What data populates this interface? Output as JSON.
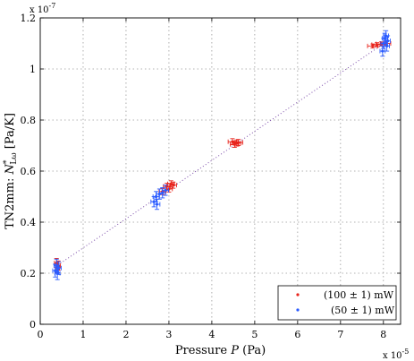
{
  "chart_data": {
    "type": "scatter",
    "xlabel_text": "Pressure",
    "xlabel_var": "P",
    "xlabel_unit": "(Pa)",
    "ylabel_prefix": "TN2mm: ",
    "ylabel_var": "N",
    "ylabel_sup": "*",
    "ylabel_sub": "Lω",
    "ylabel_unit": "[Pa/K]",
    "x_multiplier": "x 10",
    "x_multiplier_exp": "-5",
    "y_multiplier": "x 10",
    "y_multiplier_exp": "-7",
    "xlim": [
      0,
      8.4
    ],
    "ylim": [
      0,
      1.2
    ],
    "xticks": [
      0,
      1,
      2,
      3,
      4,
      5,
      6,
      7,
      8
    ],
    "yticks": [
      0,
      0.2,
      0.4,
      0.6,
      0.8,
      1,
      1.2
    ],
    "xtick_labels": [
      "0",
      "1",
      "2",
      "3",
      "4",
      "5",
      "6",
      "7",
      "8"
    ],
    "ytick_labels": [
      "0",
      "0.2",
      "0.4",
      "0.6",
      "0.8",
      "1",
      "1.2"
    ],
    "grid": true,
    "legend_position": "bottom-right",
    "fit_line": {
      "x": [
        0.35,
        8.1
      ],
      "y": [
        0.225,
        1.11
      ]
    },
    "series": [
      {
        "name": "(100 ± 1) mW",
        "color": "#e8241c",
        "points": [
          {
            "x": 0.38,
            "y": 0.24,
            "ex": 0.05,
            "ey": 0.018
          },
          {
            "x": 0.4,
            "y": 0.22,
            "ex": 0.05,
            "ey": 0.018
          },
          {
            "x": 0.42,
            "y": 0.23,
            "ex": 0.05,
            "ey": 0.018
          },
          {
            "x": 2.85,
            "y": 0.52,
            "ex": 0.08,
            "ey": 0.012
          },
          {
            "x": 2.95,
            "y": 0.54,
            "ex": 0.08,
            "ey": 0.012
          },
          {
            "x": 3.0,
            "y": 0.53,
            "ex": 0.08,
            "ey": 0.012
          },
          {
            "x": 3.05,
            "y": 0.55,
            "ex": 0.08,
            "ey": 0.012
          },
          {
            "x": 3.1,
            "y": 0.545,
            "ex": 0.08,
            "ey": 0.012
          },
          {
            "x": 4.48,
            "y": 0.715,
            "ex": 0.1,
            "ey": 0.012
          },
          {
            "x": 4.53,
            "y": 0.705,
            "ex": 0.1,
            "ey": 0.012
          },
          {
            "x": 4.58,
            "y": 0.71,
            "ex": 0.1,
            "ey": 0.012
          },
          {
            "x": 4.62,
            "y": 0.712,
            "ex": 0.1,
            "ey": 0.012
          },
          {
            "x": 7.75,
            "y": 1.09,
            "ex": 0.12,
            "ey": 0.008
          },
          {
            "x": 7.85,
            "y": 1.095,
            "ex": 0.12,
            "ey": 0.008
          },
          {
            "x": 7.95,
            "y": 1.098,
            "ex": 0.12,
            "ey": 0.008
          },
          {
            "x": 8.05,
            "y": 1.1,
            "ex": 0.12,
            "ey": 0.008
          }
        ]
      },
      {
        "name": "(50 ± 1) mW",
        "color": "#2b5cff",
        "points": [
          {
            "x": 0.35,
            "y": 0.21,
            "ex": 0.06,
            "ey": 0.025
          },
          {
            "x": 0.38,
            "y": 0.23,
            "ex": 0.06,
            "ey": 0.025
          },
          {
            "x": 0.4,
            "y": 0.2,
            "ex": 0.06,
            "ey": 0.025
          },
          {
            "x": 0.43,
            "y": 0.22,
            "ex": 0.06,
            "ey": 0.025
          },
          {
            "x": 2.65,
            "y": 0.48,
            "ex": 0.07,
            "ey": 0.02
          },
          {
            "x": 2.7,
            "y": 0.5,
            "ex": 0.07,
            "ey": 0.02
          },
          {
            "x": 2.72,
            "y": 0.47,
            "ex": 0.07,
            "ey": 0.02
          },
          {
            "x": 2.78,
            "y": 0.51,
            "ex": 0.07,
            "ey": 0.02
          },
          {
            "x": 2.85,
            "y": 0.515,
            "ex": 0.07,
            "ey": 0.02
          },
          {
            "x": 2.92,
            "y": 0.525,
            "ex": 0.07,
            "ey": 0.02
          },
          {
            "x": 7.98,
            "y": 1.07,
            "ex": 0.06,
            "ey": 0.02
          },
          {
            "x": 8.0,
            "y": 1.1,
            "ex": 0.06,
            "ey": 0.02
          },
          {
            "x": 8.03,
            "y": 1.12,
            "ex": 0.06,
            "ey": 0.02
          },
          {
            "x": 8.06,
            "y": 1.13,
            "ex": 0.06,
            "ey": 0.02
          },
          {
            "x": 8.08,
            "y": 1.09,
            "ex": 0.06,
            "ey": 0.02
          },
          {
            "x": 8.1,
            "y": 1.11,
            "ex": 0.06,
            "ey": 0.02
          }
        ]
      }
    ]
  }
}
